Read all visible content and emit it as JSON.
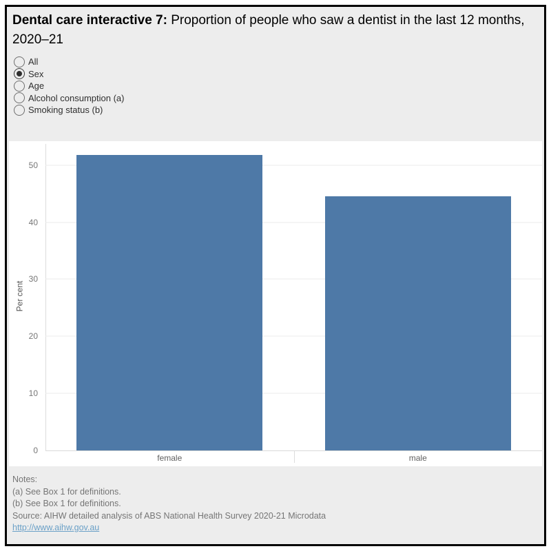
{
  "header": {
    "title_bold": "Dental care interactive 7:",
    "title_rest": " Proportion of people who saw a dentist in the last 12 months, 2020–21"
  },
  "controls": {
    "radio_group": {
      "options": [
        {
          "label": "All",
          "selected": false
        },
        {
          "label": "Sex",
          "selected": true
        },
        {
          "label": "Age",
          "selected": false
        },
        {
          "label": "Alcohol consumption (a)",
          "selected": false
        },
        {
          "label": "Smoking status (b)",
          "selected": false
        }
      ]
    }
  },
  "chart_data": {
    "type": "bar",
    "categories": [
      "female",
      "male"
    ],
    "values": [
      51.8,
      44.6
    ],
    "title": "Proportion of people who saw a dentist in the last 12 months, 2020–21, by sex",
    "xlabel": "",
    "ylabel": "Per cent",
    "ylim": [
      0,
      54.2
    ],
    "yticks": [
      0,
      10,
      20,
      30,
      40,
      50
    ],
    "grid": true,
    "legend": false,
    "bar_color": "#4e79a7"
  },
  "notes": {
    "lines": [
      "Notes:",
      "(a) See Box 1 for definitions.",
      "(b) See Box 1 for definitions.",
      "Source: AIHW detailed analysis of ABS National Health Survey 2020-21 Microdata"
    ],
    "link": "http://www.aihw.gov.au"
  },
  "colors": {
    "page_bg": "#ededed",
    "panel_bg": "#ffffff",
    "border": "#000000",
    "bar": "#4e79a7",
    "link": "#6aa0c7",
    "axis_text": "#767676",
    "notes_text": "#757575"
  }
}
